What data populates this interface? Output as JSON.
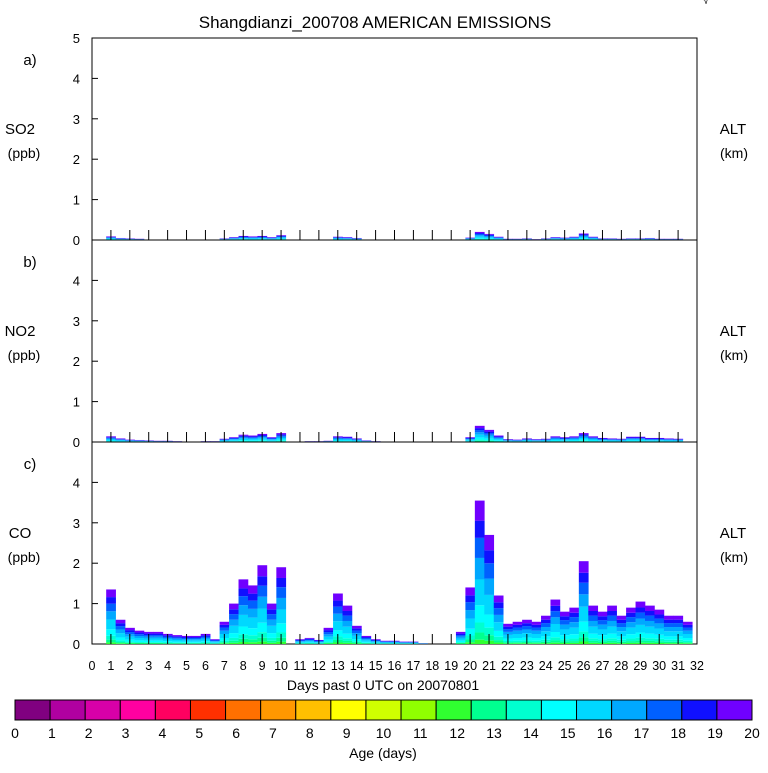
{
  "title": "Shangdianzi_200708 AMERICAN EMISSIONS",
  "corner_mark": "√",
  "panels": [
    {
      "letter": "a)",
      "species": "SO2",
      "units": "(ppb)",
      "right_label": "ALT",
      "right_units": "(km)"
    },
    {
      "letter": "b)",
      "species": "NO2",
      "units": "(ppb)",
      "right_label": "ALT",
      "right_units": "(km)"
    },
    {
      "letter": "c)",
      "species": "CO",
      "units": "(ppb)",
      "right_label": "ALT",
      "right_units": "(km)"
    }
  ],
  "xlabel": "Days past 0 UTC on 20070801",
  "colorbar": {
    "label": "Age (days)",
    "ticks": [
      "0",
      "1",
      "2",
      "3",
      "4",
      "5",
      "6",
      "7",
      "8",
      "9",
      "10",
      "11",
      "12",
      "13",
      "14",
      "15",
      "16",
      "17",
      "18",
      "19",
      "20"
    ],
    "colors": [
      "#800080",
      "#b000a0",
      "#d800a8",
      "#ff00a0",
      "#ff0060",
      "#ff3000",
      "#ff7000",
      "#ff9800",
      "#ffc000",
      "#ffff00",
      "#d0ff00",
      "#90ff00",
      "#30ff30",
      "#00ff90",
      "#00ffd0",
      "#00ffff",
      "#00d8ff",
      "#00a8ff",
      "#0060ff",
      "#1010ff",
      "#7000ff"
    ]
  },
  "chart_data": [
    {
      "type": "area",
      "stacked": true,
      "panel": "a)",
      "ylabel": "SO2 (ppb)",
      "ylim": [
        0,
        5
      ],
      "yticks": [
        "0",
        "1",
        "2",
        "3",
        "4",
        "5"
      ],
      "xlim": [
        0,
        32
      ],
      "xticks": [
        "0",
        "1",
        "2",
        "3",
        "4",
        "5",
        "6",
        "7",
        "8",
        "9",
        "10",
        "11",
        "12",
        "13",
        "14",
        "15",
        "16",
        "17",
        "18",
        "19",
        "20",
        "21",
        "22",
        "23",
        "24",
        "25",
        "26",
        "27",
        "28",
        "29",
        "30",
        "31",
        "32"
      ],
      "x": [
        0.5,
        1,
        1.5,
        2,
        2.5,
        3,
        3.5,
        4,
        4.5,
        5,
        5.5,
        6,
        6.5,
        7,
        7.5,
        8,
        8.5,
        9,
        9.5,
        10,
        10.5,
        11,
        11.5,
        12,
        12.5,
        13,
        13.5,
        14,
        14.5,
        15,
        15.5,
        16,
        16.5,
        17,
        17.5,
        18,
        18.5,
        19,
        19.5,
        20,
        20.5,
        21,
        21.5,
        22,
        22.5,
        23,
        23.5,
        24,
        24.5,
        25,
        25.5,
        26,
        26.5,
        27,
        27.5,
        28,
        28.5,
        29,
        29.5,
        30,
        30.5,
        31,
        31.5
      ],
      "total": [
        0,
        0.09,
        0.05,
        0.04,
        0.03,
        0.01,
        0.01,
        0.01,
        0,
        0,
        0,
        0.01,
        0,
        0.04,
        0.07,
        0.1,
        0.09,
        0.1,
        0.07,
        0.12,
        0,
        0,
        0,
        0,
        0,
        0.08,
        0.07,
        0.05,
        0,
        0,
        0,
        0,
        0,
        0,
        0,
        0,
        0,
        0,
        0,
        0.06,
        0.2,
        0.15,
        0.08,
        0.03,
        0.03,
        0.04,
        0.02,
        0.04,
        0.07,
        0.06,
        0.08,
        0.16,
        0.08,
        0.04,
        0.04,
        0.03,
        0.04,
        0.04,
        0.05,
        0.03,
        0.03,
        0.03,
        0
      ]
    },
    {
      "type": "area",
      "stacked": true,
      "panel": "b)",
      "ylabel": "NO2 (ppb)",
      "ylim": [
        0,
        5
      ],
      "yticks": [
        "0",
        "1",
        "2",
        "3",
        "4"
      ],
      "xlim": [
        0,
        32
      ],
      "x": [
        0.5,
        1,
        1.5,
        2,
        2.5,
        3,
        3.5,
        4,
        4.5,
        5,
        5.5,
        6,
        6.5,
        7,
        7.5,
        8,
        8.5,
        9,
        9.5,
        10,
        10.5,
        11,
        11.5,
        12,
        12.5,
        13,
        13.5,
        14,
        14.5,
        15,
        15.5,
        16,
        16.5,
        17,
        17.5,
        18,
        18.5,
        19,
        19.5,
        20,
        20.5,
        21,
        21.5,
        22,
        22.5,
        23,
        23.5,
        24,
        24.5,
        25,
        25.5,
        26,
        26.5,
        27,
        27.5,
        28,
        28.5,
        29,
        29.5,
        30,
        30.5,
        31,
        31.5
      ],
      "total": [
        0,
        0.14,
        0.09,
        0.06,
        0.05,
        0.04,
        0.03,
        0.03,
        0.02,
        0.01,
        0.01,
        0.02,
        0.02,
        0.08,
        0.12,
        0.18,
        0.16,
        0.2,
        0.12,
        0.22,
        0,
        0,
        0.02,
        0.02,
        0.03,
        0.14,
        0.13,
        0.09,
        0.04,
        0.02,
        0.01,
        0.01,
        0.01,
        0.01,
        0,
        0,
        0,
        0,
        0,
        0.12,
        0.4,
        0.3,
        0.16,
        0.07,
        0.06,
        0.09,
        0.07,
        0.08,
        0.14,
        0.12,
        0.14,
        0.22,
        0.14,
        0.1,
        0.09,
        0.08,
        0.13,
        0.13,
        0.1,
        0.1,
        0.09,
        0.08,
        0
      ]
    },
    {
      "type": "area",
      "stacked": true,
      "panel": "c)",
      "ylabel": "CO (ppb)",
      "ylim": [
        0,
        5
      ],
      "yticks": [
        "0",
        "1",
        "2",
        "3",
        "4"
      ],
      "xlim": [
        0,
        32
      ],
      "x": [
        0.5,
        1,
        1.5,
        2,
        2.5,
        3,
        3.5,
        4,
        4.5,
        5,
        5.5,
        6,
        6.5,
        7,
        7.5,
        8,
        8.5,
        9,
        9.5,
        10,
        10.5,
        11,
        11.5,
        12,
        12.5,
        13,
        13.5,
        14,
        14.5,
        15,
        15.5,
        16,
        16.5,
        17,
        17.5,
        18,
        18.5,
        19,
        19.5,
        20,
        20.5,
        21,
        21.5,
        22,
        22.5,
        23,
        23.5,
        24,
        24.5,
        25,
        25.5,
        26,
        26.5,
        27,
        27.5,
        28,
        28.5,
        29,
        29.5,
        30,
        30.5,
        31,
        31.5
      ],
      "total": [
        0,
        1.35,
        0.6,
        0.4,
        0.33,
        0.3,
        0.3,
        0.25,
        0.22,
        0.2,
        0.2,
        0.25,
        0.12,
        0.55,
        1.0,
        1.6,
        1.45,
        1.95,
        1.0,
        1.9,
        0,
        0.12,
        0.15,
        0.1,
        0.4,
        1.25,
        0.95,
        0.45,
        0.2,
        0.12,
        0.08,
        0.08,
        0.06,
        0.06,
        0.02,
        0,
        0,
        0,
        0.3,
        1.4,
        3.55,
        2.7,
        1.2,
        0.5,
        0.55,
        0.6,
        0.55,
        0.7,
        1.1,
        0.8,
        0.9,
        2.05,
        0.95,
        0.8,
        0.95,
        0.7,
        0.9,
        1.05,
        0.95,
        0.85,
        0.7,
        0.7,
        0.55
      ]
    }
  ]
}
